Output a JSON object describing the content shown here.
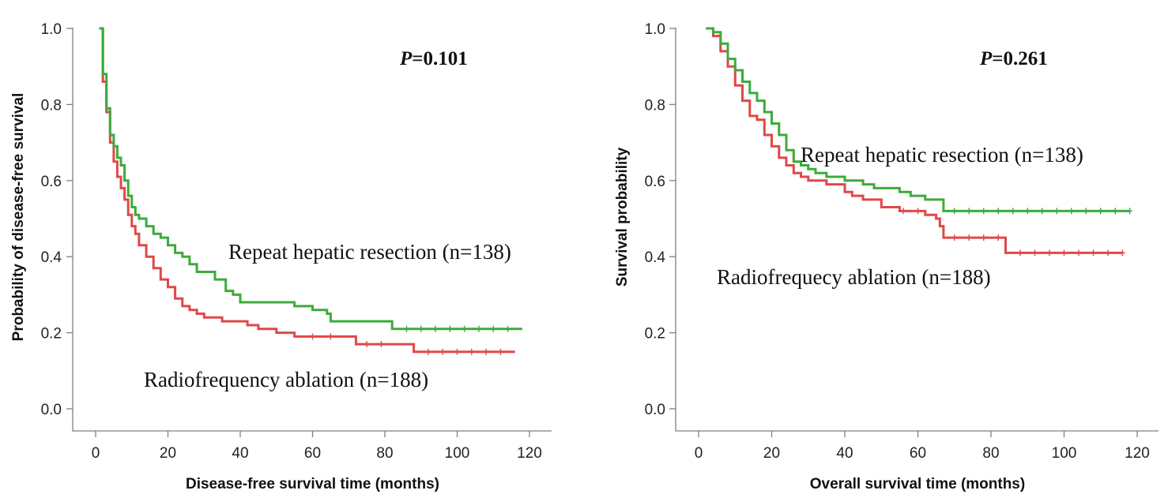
{
  "chart_data": [
    {
      "type": "line",
      "subtype": "kaplan-meier step",
      "xlabel": "Disease-free survival time (months)",
      "ylabel": "Probability of disease-free survival",
      "xlim": [
        0,
        120
      ],
      "ylim": [
        0,
        1
      ],
      "xticks": [
        "0",
        "20",
        "40",
        "60",
        "80",
        "100",
        "120"
      ],
      "yticks": [
        "0.0",
        "0.2",
        "0.4",
        "0.6",
        "0.8",
        "1.0"
      ],
      "grid": false,
      "annotations": {
        "p_label": "P",
        "p_value": "=0.101",
        "upper": "Repeat hepatic resection (n=138)",
        "lower": "Radiofrequency ablation (n=188)"
      },
      "series": [
        {
          "color": "#3cab3c",
          "steps": [
            [
              1,
              1.0
            ],
            [
              2,
              0.88
            ],
            [
              3,
              0.79
            ],
            [
              4,
              0.72
            ],
            [
              5,
              0.69
            ],
            [
              6,
              0.66
            ],
            [
              7,
              0.64
            ],
            [
              8,
              0.6
            ],
            [
              9,
              0.56
            ],
            [
              10,
              0.53
            ],
            [
              11,
              0.51
            ],
            [
              12,
              0.5
            ],
            [
              14,
              0.48
            ],
            [
              16,
              0.46
            ],
            [
              18,
              0.45
            ],
            [
              20,
              0.43
            ],
            [
              22,
              0.41
            ],
            [
              24,
              0.4
            ],
            [
              26,
              0.38
            ],
            [
              28,
              0.36
            ],
            [
              30,
              0.36
            ],
            [
              33,
              0.34
            ],
            [
              36,
              0.31
            ],
            [
              38,
              0.3
            ],
            [
              40,
              0.28
            ],
            [
              45,
              0.28
            ],
            [
              50,
              0.28
            ],
            [
              55,
              0.27
            ],
            [
              60,
              0.26
            ],
            [
              62,
              0.26
            ],
            [
              64,
              0.25
            ],
            [
              65,
              0.23
            ],
            [
              70,
              0.23
            ],
            [
              75,
              0.23
            ],
            [
              82,
              0.21
            ],
            [
              90,
              0.21
            ],
            [
              100,
              0.21
            ],
            [
              110,
              0.21
            ],
            [
              118,
              0.21
            ]
          ],
          "censored": [
            [
              86,
              0.21
            ],
            [
              90,
              0.21
            ],
            [
              94,
              0.21
            ],
            [
              98,
              0.21
            ],
            [
              102,
              0.21
            ],
            [
              106,
              0.21
            ],
            [
              110,
              0.21
            ],
            [
              114,
              0.21
            ]
          ]
        },
        {
          "color": "#e04848",
          "steps": [
            [
              1,
              1.0
            ],
            [
              2,
              0.86
            ],
            [
              3,
              0.78
            ],
            [
              4,
              0.7
            ],
            [
              5,
              0.65
            ],
            [
              6,
              0.61
            ],
            [
              7,
              0.58
            ],
            [
              8,
              0.55
            ],
            [
              9,
              0.51
            ],
            [
              10,
              0.48
            ],
            [
              11,
              0.46
            ],
            [
              12,
              0.43
            ],
            [
              14,
              0.4
            ],
            [
              16,
              0.37
            ],
            [
              18,
              0.34
            ],
            [
              20,
              0.32
            ],
            [
              22,
              0.29
            ],
            [
              24,
              0.27
            ],
            [
              26,
              0.26
            ],
            [
              28,
              0.25
            ],
            [
              30,
              0.24
            ],
            [
              35,
              0.23
            ],
            [
              40,
              0.23
            ],
            [
              42,
              0.22
            ],
            [
              45,
              0.21
            ],
            [
              50,
              0.2
            ],
            [
              55,
              0.19
            ],
            [
              60,
              0.19
            ],
            [
              65,
              0.19
            ],
            [
              70,
              0.19
            ],
            [
              72,
              0.17
            ],
            [
              80,
              0.17
            ],
            [
              88,
              0.15
            ],
            [
              95,
              0.15
            ],
            [
              105,
              0.15
            ],
            [
              116,
              0.15
            ]
          ],
          "censored": [
            [
              60,
              0.19
            ],
            [
              65,
              0.19
            ],
            [
              75,
              0.17
            ],
            [
              79,
              0.17
            ],
            [
              92,
              0.15
            ],
            [
              96,
              0.15
            ],
            [
              100,
              0.15
            ],
            [
              104,
              0.15
            ],
            [
              108,
              0.15
            ],
            [
              112,
              0.15
            ]
          ]
        }
      ]
    },
    {
      "type": "line",
      "subtype": "kaplan-meier step",
      "xlabel": "Overall survival time (months)",
      "ylabel": "Survival probability",
      "xlim": [
        0,
        120
      ],
      "ylim": [
        0,
        1
      ],
      "xticks": [
        "0",
        "20",
        "40",
        "60",
        "80",
        "100",
        "120"
      ],
      "yticks": [
        "0.0",
        "0.2",
        "0.4",
        "0.6",
        "0.8",
        "1.0"
      ],
      "grid": false,
      "annotations": {
        "p_label": "P",
        "p_value": "=0.261",
        "upper": "Repeat hepatic resection (n=138)",
        "lower": "Radiofrequecy ablation (n=188)"
      },
      "series": [
        {
          "color": "#3cab3c",
          "steps": [
            [
              2,
              1.0
            ],
            [
              4,
              0.99
            ],
            [
              6,
              0.96
            ],
            [
              8,
              0.92
            ],
            [
              10,
              0.89
            ],
            [
              12,
              0.86
            ],
            [
              14,
              0.83
            ],
            [
              16,
              0.81
            ],
            [
              18,
              0.78
            ],
            [
              20,
              0.75
            ],
            [
              22,
              0.72
            ],
            [
              24,
              0.68
            ],
            [
              26,
              0.65
            ],
            [
              28,
              0.64
            ],
            [
              30,
              0.63
            ],
            [
              32,
              0.62
            ],
            [
              35,
              0.61
            ],
            [
              40,
              0.6
            ],
            [
              45,
              0.59
            ],
            [
              48,
              0.58
            ],
            [
              52,
              0.58
            ],
            [
              55,
              0.57
            ],
            [
              58,
              0.56
            ],
            [
              62,
              0.55
            ],
            [
              66,
              0.55
            ],
            [
              67,
              0.52
            ],
            [
              72,
              0.52
            ],
            [
              80,
              0.52
            ],
            [
              90,
              0.52
            ],
            [
              100,
              0.52
            ],
            [
              110,
              0.52
            ],
            [
              118,
              0.52
            ]
          ],
          "censored": [
            [
              70,
              0.52
            ],
            [
              74,
              0.52
            ],
            [
              78,
              0.52
            ],
            [
              82,
              0.52
            ],
            [
              86,
              0.52
            ],
            [
              90,
              0.52
            ],
            [
              94,
              0.52
            ],
            [
              98,
              0.52
            ],
            [
              102,
              0.52
            ],
            [
              106,
              0.52
            ],
            [
              110,
              0.52
            ],
            [
              114,
              0.52
            ],
            [
              118,
              0.52
            ]
          ]
        },
        {
          "color": "#e04848",
          "steps": [
            [
              2,
              1.0
            ],
            [
              4,
              0.98
            ],
            [
              6,
              0.94
            ],
            [
              8,
              0.9
            ],
            [
              10,
              0.85
            ],
            [
              12,
              0.81
            ],
            [
              14,
              0.77
            ],
            [
              16,
              0.76
            ],
            [
              18,
              0.72
            ],
            [
              20,
              0.69
            ],
            [
              22,
              0.66
            ],
            [
              24,
              0.64
            ],
            [
              26,
              0.62
            ],
            [
              28,
              0.61
            ],
            [
              30,
              0.6
            ],
            [
              35,
              0.59
            ],
            [
              40,
              0.57
            ],
            [
              42,
              0.56
            ],
            [
              45,
              0.55
            ],
            [
              50,
              0.53
            ],
            [
              55,
              0.52
            ],
            [
              60,
              0.52
            ],
            [
              62,
              0.51
            ],
            [
              65,
              0.5
            ],
            [
              66,
              0.48
            ],
            [
              67,
              0.45
            ],
            [
              72,
              0.45
            ],
            [
              80,
              0.45
            ],
            [
              84,
              0.41
            ],
            [
              90,
              0.41
            ],
            [
              100,
              0.41
            ],
            [
              110,
              0.41
            ],
            [
              116,
              0.41
            ]
          ],
          "censored": [
            [
              56,
              0.52
            ],
            [
              60,
              0.52
            ],
            [
              70,
              0.45
            ],
            [
              74,
              0.45
            ],
            [
              78,
              0.45
            ],
            [
              82,
              0.45
            ],
            [
              88,
              0.41
            ],
            [
              92,
              0.41
            ],
            [
              96,
              0.41
            ],
            [
              100,
              0.41
            ],
            [
              104,
              0.41
            ],
            [
              108,
              0.41
            ],
            [
              112,
              0.41
            ],
            [
              116,
              0.41
            ]
          ]
        }
      ]
    }
  ]
}
